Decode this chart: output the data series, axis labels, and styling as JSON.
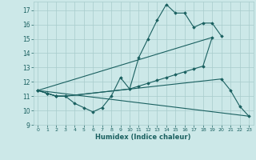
{
  "xlabel": "Humidex (Indice chaleur)",
  "background_color": "#cce8e8",
  "grid_color": "#a8cccc",
  "line_color": "#1a6060",
  "xlim": [
    -0.5,
    23.5
  ],
  "ylim": [
    9,
    17.6
  ],
  "yticks": [
    9,
    10,
    11,
    12,
    13,
    14,
    15,
    16,
    17
  ],
  "xticks": [
    0,
    1,
    2,
    3,
    4,
    5,
    6,
    7,
    8,
    9,
    10,
    11,
    12,
    13,
    14,
    15,
    16,
    17,
    18,
    19,
    20,
    21,
    22,
    23
  ],
  "line1_x": [
    0,
    1,
    2,
    3,
    4,
    5,
    6,
    7,
    8,
    9,
    10,
    11,
    12,
    13,
    14,
    15,
    16,
    17,
    18,
    19,
    20
  ],
  "line1_y": [
    11.4,
    11.2,
    11.0,
    11.0,
    10.5,
    10.2,
    9.9,
    10.2,
    11.0,
    12.3,
    11.5,
    13.7,
    15.0,
    16.3,
    17.4,
    16.8,
    16.8,
    15.8,
    16.1,
    16.1,
    15.2
  ],
  "line2_x": [
    0,
    1,
    2,
    3,
    10,
    11,
    12,
    13,
    14,
    15,
    16,
    17,
    18,
    19
  ],
  "line2_y": [
    11.4,
    11.2,
    11.0,
    11.0,
    11.5,
    11.7,
    11.9,
    12.1,
    12.3,
    12.5,
    12.7,
    12.9,
    13.1,
    15.1
  ],
  "line3_x": [
    0,
    2,
    3,
    20,
    21,
    22,
    23
  ],
  "line3_y": [
    11.4,
    11.0,
    11.0,
    12.2,
    11.4,
    10.3,
    9.6
  ],
  "line4_x": [
    0,
    19
  ],
  "line4_y": [
    11.4,
    15.1
  ],
  "line5_x": [
    0,
    23
  ],
  "line5_y": [
    11.4,
    9.6
  ]
}
